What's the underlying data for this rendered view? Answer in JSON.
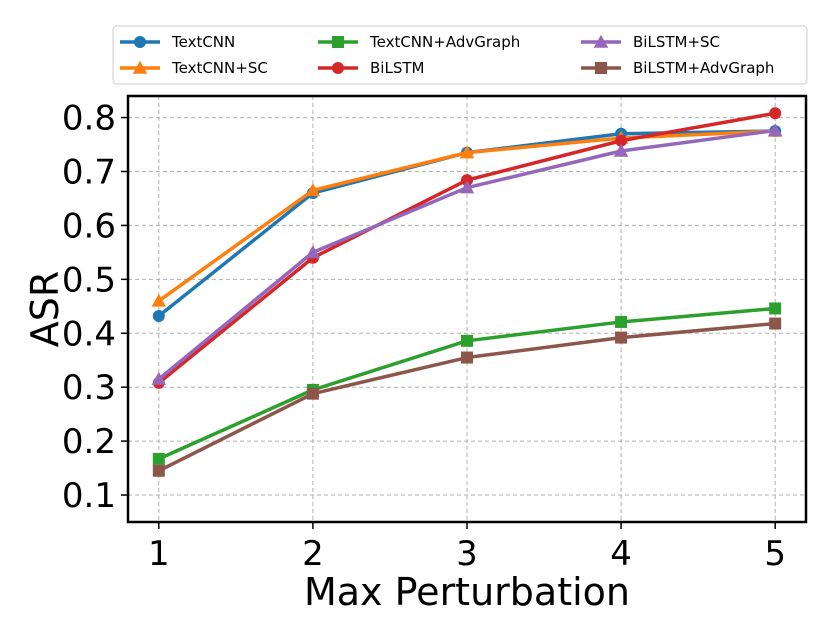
{
  "chart_data": {
    "type": "line",
    "title": "",
    "xlabel": "Max Perturbation",
    "ylabel": "ASR",
    "x": [
      1,
      2,
      3,
      4,
      5
    ],
    "xlim": [
      0.8,
      5.2
    ],
    "ylim": [
      0.05,
      0.84
    ],
    "xticks": [
      1,
      2,
      3,
      4,
      5
    ],
    "yticks": [
      0.1,
      0.2,
      0.3,
      0.4,
      0.5,
      0.6,
      0.7,
      0.8
    ],
    "ytick_labels": [
      "0.1",
      "0.2",
      "0.3",
      "0.4",
      "0.5",
      "0.6",
      "0.7",
      "0.8"
    ],
    "grid": true,
    "legend_position": "top, outside plot, 3 columns",
    "series": [
      {
        "name": "TextCNN",
        "color": "#1f77b4",
        "marker": "circle",
        "values": [
          0.432,
          0.66,
          0.735,
          0.77,
          0.775
        ]
      },
      {
        "name": "TextCNN+SC",
        "color": "#ff7f0e",
        "marker": "triangle",
        "values": [
          0.46,
          0.665,
          0.735,
          0.762,
          0.775
        ]
      },
      {
        "name": "TextCNN+AdvGraph",
        "color": "#2ca02c",
        "marker": "square",
        "values": [
          0.167,
          0.295,
          0.386,
          0.421,
          0.446
        ]
      },
      {
        "name": "BiLSTM",
        "color": "#d62728",
        "marker": "circle",
        "values": [
          0.308,
          0.54,
          0.684,
          0.757,
          0.808
        ]
      },
      {
        "name": "BiLSTM+SC",
        "color": "#9467bd",
        "marker": "triangle",
        "values": [
          0.315,
          0.55,
          0.67,
          0.738,
          0.776
        ]
      },
      {
        "name": "BiLSTM+AdvGraph",
        "color": "#8c564b",
        "marker": "square",
        "values": [
          0.145,
          0.288,
          0.355,
          0.392,
          0.418
        ]
      }
    ]
  }
}
